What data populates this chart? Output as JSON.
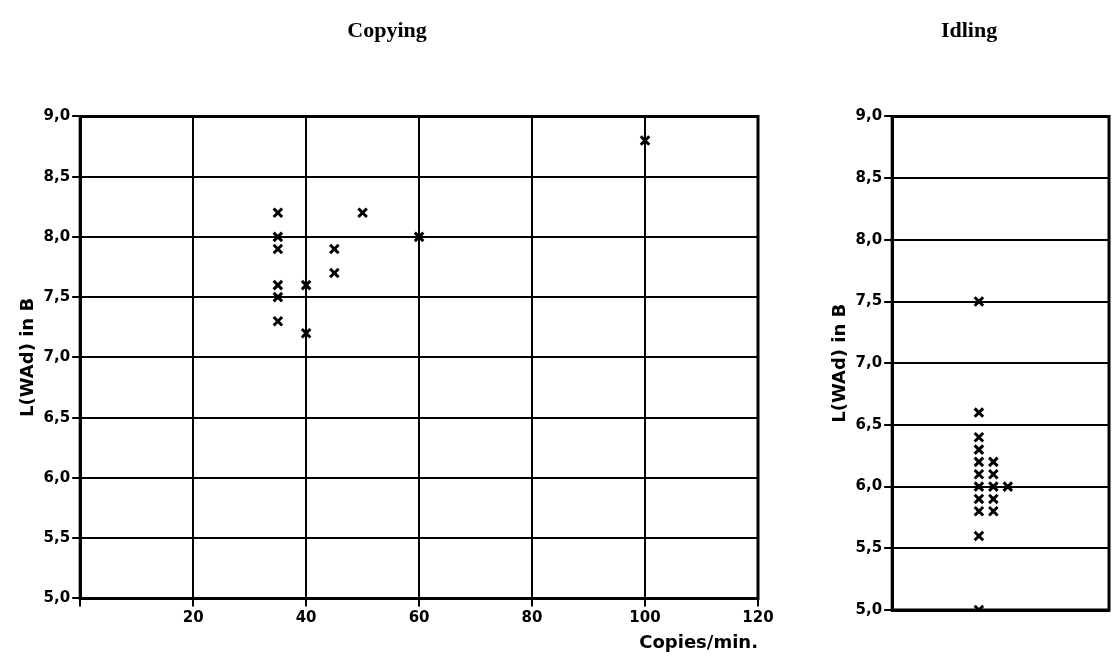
{
  "chart_data": [
    {
      "type": "scatter",
      "title": "Copying",
      "xlabel": "Copies/min.",
      "ylabel": "L(WAd) in B",
      "xlim": [
        0,
        120
      ],
      "xticks": [
        {
          "value": 0,
          "label": null
        },
        20,
        40,
        60,
        80,
        100,
        120
      ],
      "ylim": [
        5,
        9
      ],
      "yticks": [
        {
          "value": 5,
          "label": "5,0"
        },
        {
          "value": 5.5,
          "label": "5,5"
        },
        {
          "value": 6,
          "label": "6,0"
        },
        {
          "value": 6.5,
          "label": "6,5"
        },
        {
          "value": 7,
          "label": "7,0"
        },
        {
          "value": 7.5,
          "label": "7,5"
        },
        {
          "value": 8,
          "label": "8,0"
        },
        {
          "value": 8.5,
          "label": "8,5"
        },
        {
          "value": 9,
          "label": "9,0"
        }
      ],
      "grid": true,
      "legend": false,
      "marker": "cross",
      "series": [
        {
          "color": "#000000",
          "x": [
            35,
            35,
            35,
            35,
            35,
            35,
            40,
            40,
            45,
            45,
            50,
            60,
            100
          ],
          "values": [
            8.2,
            8.0,
            7.9,
            7.6,
            7.5,
            7.3,
            7.6,
            7.2,
            7.9,
            7.7,
            8.2,
            8.0,
            8.8
          ]
        }
      ]
    },
    {
      "type": "scatter",
      "title": "Idling",
      "ylabel": "L(WAd) in B",
      "categories": [
        null,
        null,
        null,
        null,
        null,
        null,
        null,
        null,
        null,
        null,
        null,
        null,
        null,
        null,
        null,
        null
      ],
      "ylim": [
        5,
        9
      ],
      "yticks": [
        {
          "value": 5,
          "label": "5,0"
        },
        {
          "value": 5.5,
          "label": "5,5"
        },
        {
          "value": 6,
          "label": "6,0"
        },
        {
          "value": 6.5,
          "label": "6,5"
        },
        {
          "value": 7,
          "label": "7,0"
        },
        {
          "value": 7.5,
          "label": "7,5"
        },
        {
          "value": 8,
          "label": "8,0"
        },
        {
          "value": 8.5,
          "label": "8,5"
        },
        {
          "value": 9,
          "label": "9,0"
        }
      ],
      "grid": "y",
      "legend": false,
      "marker": "cross",
      "tick_labels": "y",
      "series": [
        {
          "color": "#000000",
          "values": [
            null,
            null,
            null,
            null,
            null,
            null,
            7.5,
            6.2,
            6.0,
            null,
            null,
            null,
            null,
            null,
            null,
            null
          ]
        },
        {
          "color": "#000000",
          "values": [
            null,
            null,
            null,
            null,
            null,
            null,
            6.6,
            6.1,
            null,
            null,
            null,
            null,
            null,
            null,
            null,
            null
          ]
        },
        {
          "color": "#000000",
          "values": [
            null,
            null,
            null,
            null,
            null,
            null,
            6.4,
            6.0,
            null,
            null,
            null,
            null,
            null,
            null,
            null,
            null
          ]
        },
        {
          "color": "#000000",
          "values": [
            null,
            null,
            null,
            null,
            null,
            null,
            6.3,
            5.9,
            null,
            null,
            null,
            null,
            null,
            null,
            null,
            null
          ]
        },
        {
          "color": "#000000",
          "values": [
            null,
            null,
            null,
            null,
            null,
            null,
            6.2,
            5.8,
            null,
            null,
            null,
            null,
            null,
            null,
            null,
            null
          ]
        },
        {
          "color": "#000000",
          "values": [
            null,
            null,
            null,
            null,
            null,
            null,
            6.1,
            null,
            null,
            null,
            null,
            null,
            null,
            null,
            null,
            null
          ]
        },
        {
          "color": "#000000",
          "values": [
            null,
            null,
            null,
            null,
            null,
            null,
            6.0,
            null,
            null,
            null,
            null,
            null,
            null,
            null,
            null,
            null
          ]
        },
        {
          "color": "#000000",
          "values": [
            null,
            null,
            null,
            null,
            null,
            null,
            5.9,
            null,
            null,
            null,
            null,
            null,
            null,
            null,
            null,
            null
          ]
        },
        {
          "color": "#000000",
          "values": [
            null,
            null,
            null,
            null,
            null,
            null,
            5.8,
            null,
            null,
            null,
            null,
            null,
            null,
            null,
            null,
            null
          ]
        },
        {
          "color": "#000000",
          "values": [
            null,
            null,
            null,
            null,
            null,
            null,
            5.6,
            null,
            null,
            null,
            null,
            null,
            null,
            null,
            null,
            null
          ]
        },
        {
          "color": "#000000",
          "values": [
            null,
            null,
            null,
            null,
            null,
            null,
            5.0,
            null,
            null,
            null,
            null,
            null,
            null,
            null,
            null,
            null
          ]
        }
      ]
    }
  ]
}
